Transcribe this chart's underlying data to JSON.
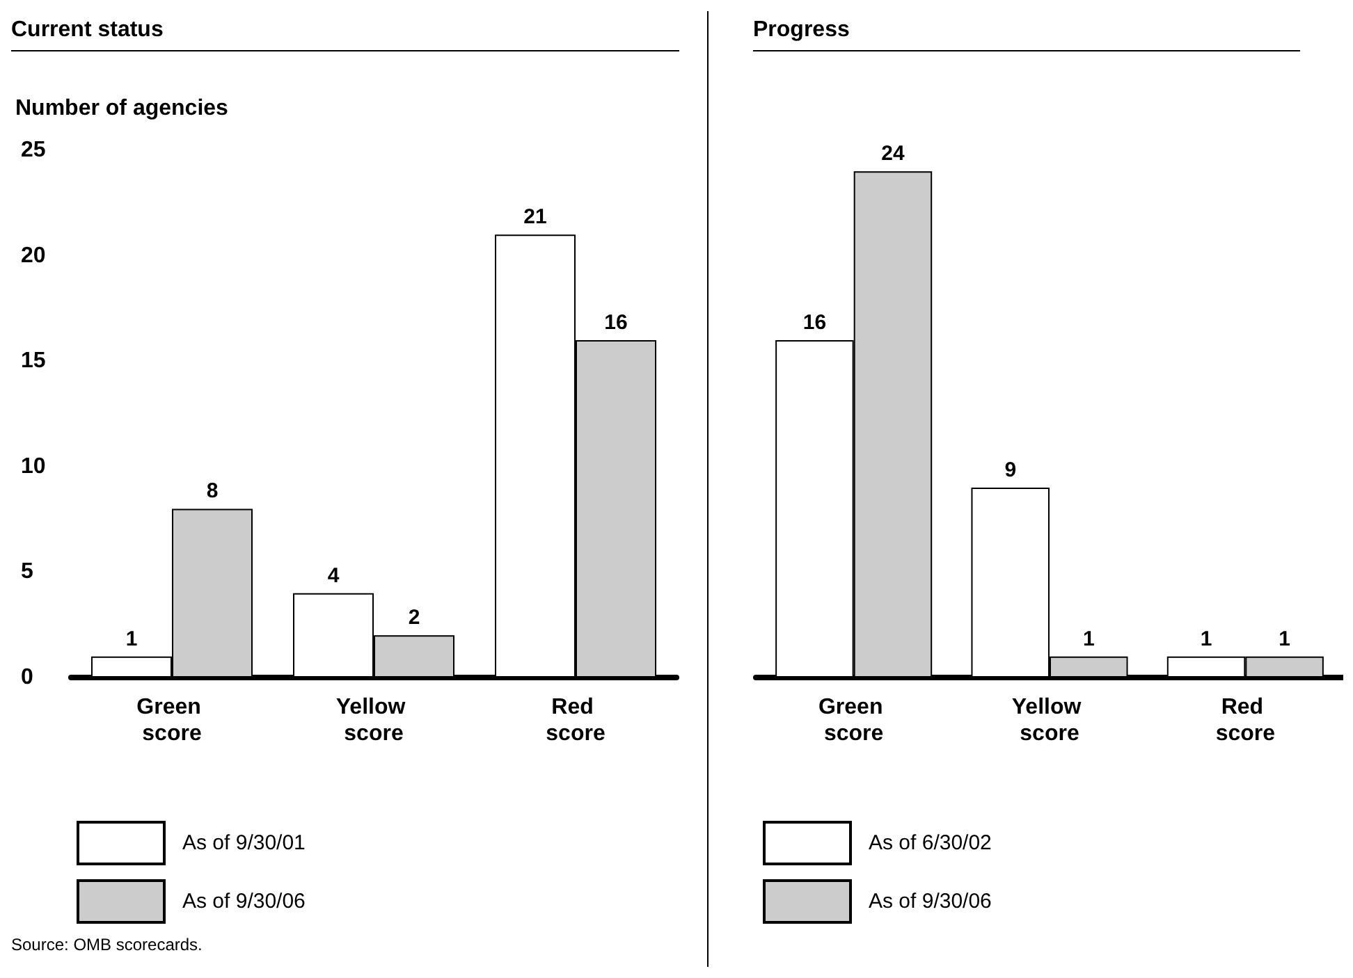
{
  "chart_data": [
    {
      "type": "bar",
      "title": "Current status",
      "ylabel": "Number of agencies",
      "categories": [
        "Green score",
        "Yellow score",
        "Red score"
      ],
      "series": [
        {
          "name": "As of 9/30/01",
          "color": "#ffffff",
          "values": [
            1,
            4,
            21
          ]
        },
        {
          "name": "As of 9/30/06",
          "color": "#cccccc",
          "values": [
            8,
            2,
            16
          ]
        }
      ],
      "ylim": [
        0,
        25
      ],
      "yticks": [
        0,
        5,
        10,
        15,
        20,
        25
      ],
      "data_labels": true,
      "grid": false,
      "legend": "bottom left",
      "annotations": [
        "Source: OMB scorecards."
      ]
    },
    {
      "type": "bar",
      "title": "Progress",
      "categories": [
        "Green score",
        "Yellow score",
        "Red score"
      ],
      "series": [
        {
          "name": "As of 6/30/02",
          "color": "#ffffff",
          "values": [
            16,
            9,
            1
          ]
        },
        {
          "name": "As of 9/30/06",
          "color": "#cccccc",
          "values": [
            24,
            1,
            1
          ]
        }
      ],
      "ylim": [
        0,
        25
      ],
      "yticks": [
        0,
        5,
        10,
        15,
        20,
        25
      ],
      "data_labels": true,
      "grid": false,
      "legend": "bottom left",
      "tick_labels": "x"
    }
  ]
}
